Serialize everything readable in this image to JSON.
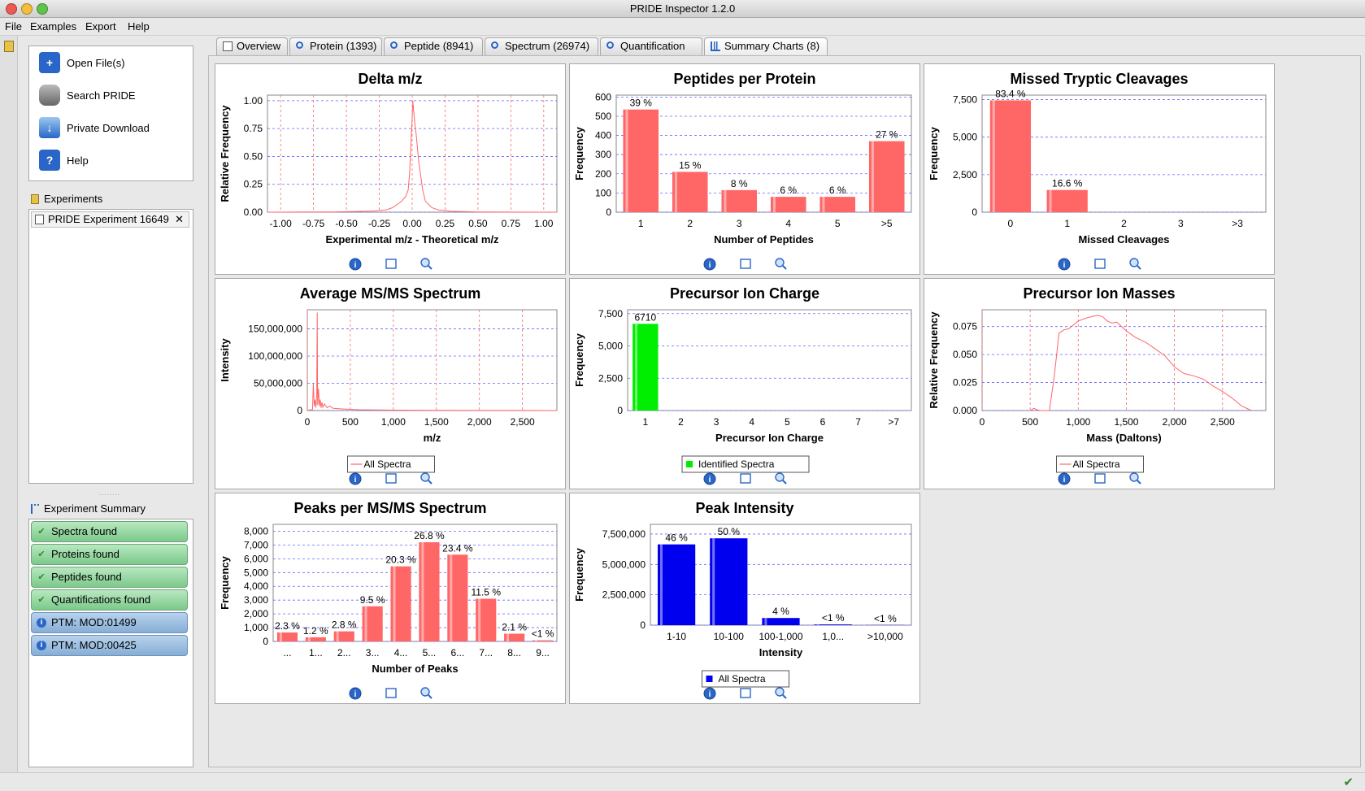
{
  "window": {
    "title": "PRIDE Inspector 1.2.0"
  },
  "menu": [
    "File",
    "Examples",
    "Export",
    "Help"
  ],
  "actions": [
    "Open File(s)",
    "Search PRIDE",
    "Private Download",
    "Help"
  ],
  "experiments": {
    "title": "Experiments",
    "items": [
      "PRIDE Experiment 16649"
    ]
  },
  "summary": {
    "title": "Experiment Summary",
    "items": [
      {
        "label": "Spectra found",
        "status": "check"
      },
      {
        "label": "Proteins found",
        "status": "check"
      },
      {
        "label": "Peptides found",
        "status": "check"
      },
      {
        "label": "Quantifications found",
        "status": "check"
      },
      {
        "label": "PTM: MOD:01499",
        "status": "info"
      },
      {
        "label": "PTM: MOD:00425",
        "status": "info"
      }
    ]
  },
  "tabs": [
    {
      "label": "Overview",
      "icon": "document-icon"
    },
    {
      "label": "Protein (1393)",
      "icon": "search-icon"
    },
    {
      "label": "Peptide (8941)",
      "icon": "search-icon"
    },
    {
      "label": "Spectrum (26974)",
      "icon": "search-icon"
    },
    {
      "label": "Quantification",
      "icon": "search-icon"
    },
    {
      "label": "Summary Charts (8)",
      "icon": "chart-icon",
      "active": true
    }
  ],
  "colors": {
    "red_series": "#ff6666",
    "green_series": "#00ee00",
    "blue_series": "#0000ee"
  },
  "chart_data": [
    {
      "id": "delta",
      "type": "line",
      "title": "Delta m/z",
      "xlabel": "Experimental m/z - Theoretical m/z",
      "ylabel": "Relative Frequency",
      "xlim": [
        -1.1,
        1.1
      ],
      "ylim": [
        0,
        1.05
      ],
      "xticks": [
        "-1.00",
        "-0.75",
        "-0.50",
        "-0.25",
        "0.00",
        "0.25",
        "0.50",
        "0.75",
        "1.00"
      ],
      "xtick_values": [
        -1,
        -0.75,
        -0.5,
        -0.25,
        0,
        0.25,
        0.5,
        0.75,
        1
      ],
      "yticks": [
        "0.00",
        "0.25",
        "0.50",
        "0.75",
        "1.00"
      ],
      "ytick_values": [
        0,
        0.25,
        0.5,
        0.75,
        1
      ],
      "legend": null,
      "series": [
        {
          "x": [
            -1.1,
            -0.6,
            -0.3,
            -0.2,
            -0.15,
            -0.1,
            -0.08,
            -0.05,
            -0.03,
            -0.02,
            -0.01,
            0,
            0.005,
            0.01,
            0.02,
            0.03,
            0.05,
            0.08,
            0.1,
            0.15,
            0.2,
            0.3,
            0.5,
            1.1
          ],
          "y": [
            0,
            0.002,
            0.01,
            0.02,
            0.04,
            0.08,
            0.1,
            0.14,
            0.2,
            0.35,
            0.6,
            0.85,
            1.0,
            0.92,
            0.8,
            0.7,
            0.45,
            0.2,
            0.1,
            0.04,
            0.02,
            0.008,
            0.002,
            0
          ]
        }
      ]
    },
    {
      "id": "ppp",
      "type": "bar",
      "title": "Peptides per Protein",
      "xlabel": "Number of Peptides",
      "ylabel": "Frequency",
      "categories": [
        "1",
        "2",
        "3",
        "4",
        "5",
        ">5"
      ],
      "values": [
        535,
        210,
        115,
        80,
        80,
        370
      ],
      "labels": [
        "39 %",
        "15 %",
        "8 %",
        "6 %",
        "6 %",
        "27 %"
      ],
      "ylim": [
        0,
        610
      ],
      "yticks": [
        "0",
        "100",
        "200",
        "300",
        "400",
        "500",
        "600"
      ],
      "ytick_values": [
        0,
        100,
        200,
        300,
        400,
        500,
        600
      ],
      "legend": null
    },
    {
      "id": "missed",
      "type": "bar",
      "title": "Missed Tryptic Cleavages",
      "xlabel": "Missed Cleavages",
      "ylabel": "Frequency",
      "categories": [
        "0",
        "1",
        "2",
        "3",
        ">3"
      ],
      "values": [
        7450,
        1480,
        0,
        0,
        0
      ],
      "labels": [
        "83.4 %",
        "16.6 %",
        "",
        "",
        ""
      ],
      "ylim": [
        0,
        7800
      ],
      "yticks": [
        "0",
        "2,500",
        "5,000",
        "7,500"
      ],
      "ytick_values": [
        0,
        2500,
        5000,
        7500
      ],
      "legend": null
    },
    {
      "id": "avgms",
      "type": "line",
      "title": "Average MS/MS Spectrum",
      "xlabel": "m/z",
      "ylabel": "Intensity",
      "xlim": [
        0,
        2900
      ],
      "ylim": [
        0,
        185000000
      ],
      "xticks": [
        "0",
        "500",
        "1,000",
        "1,500",
        "2,000",
        "2,500"
      ],
      "xtick_values": [
        0,
        500,
        1000,
        1500,
        2000,
        2500
      ],
      "yticks": [
        "0",
        "50,000,000",
        "100,000,000",
        "150,000,000"
      ],
      "ytick_values": [
        0,
        50000000,
        100000000,
        150000000
      ],
      "legend": "All Spectra",
      "series": [
        {
          "x": [
            0,
            60,
            70,
            80,
            90,
            100,
            110,
            115,
            120,
            130,
            140,
            150,
            160,
            170,
            180,
            200,
            230,
            260,
            300,
            400,
            600,
            1000,
            1500,
            2500,
            2900
          ],
          "y": [
            0,
            2000000,
            50000000,
            8000000,
            20000000,
            5000000,
            30000000,
            180000000,
            10000000,
            40000000,
            8000000,
            20000000,
            5000000,
            15000000,
            6000000,
            12000000,
            5000000,
            8000000,
            4000000,
            3000000,
            1500000,
            800000,
            400000,
            100000,
            0
          ]
        }
      ]
    },
    {
      "id": "charge",
      "type": "bar",
      "title": "Precursor Ion Charge",
      "xlabel": "Precursor Ion Charge",
      "ylabel": "Frequency",
      "categories": [
        "1",
        "2",
        "3",
        "4",
        "5",
        "6",
        "7",
        ">7"
      ],
      "values": [
        6710,
        0,
        0,
        0,
        0,
        0,
        0,
        0
      ],
      "labels": [
        "6710",
        "",
        "",
        "",
        "",
        "",
        "",
        ""
      ],
      "ylim": [
        0,
        7800
      ],
      "yticks": [
        "0",
        "2,500",
        "5,000",
        "7,500"
      ],
      "ytick_values": [
        0,
        2500,
        5000,
        7500
      ],
      "legend": "Identified Spectra",
      "color": "green"
    },
    {
      "id": "masses",
      "type": "line",
      "title": "Precursor Ion Masses",
      "xlabel": "Mass (Daltons)",
      "ylabel": "Relative Frequency",
      "xlim": [
        0,
        2950
      ],
      "ylim": [
        0,
        0.09
      ],
      "xticks": [
        "0",
        "500",
        "1,000",
        "1,500",
        "2,000",
        "2,500"
      ],
      "xtick_values": [
        0,
        500,
        1000,
        1500,
        2000,
        2500
      ],
      "yticks": [
        "0.000",
        "0.025",
        "0.050",
        "0.075"
      ],
      "ytick_values": [
        0,
        0.025,
        0.05,
        0.075
      ],
      "legend": "All Spectra",
      "series": [
        {
          "x": [
            500,
            540,
            560,
            600,
            700,
            750,
            800,
            850,
            900,
            1000,
            1100,
            1200,
            1250,
            1300,
            1350,
            1400,
            1500,
            1600,
            1700,
            1800,
            1900,
            2000,
            2100,
            2200,
            2300,
            2400,
            2500,
            2600,
            2700,
            2800
          ],
          "y": [
            0,
            0.002,
            0.001,
            0,
            0,
            0.03,
            0.069,
            0.072,
            0.073,
            0.08,
            0.083,
            0.085,
            0.084,
            0.08,
            0.078,
            0.079,
            0.071,
            0.065,
            0.061,
            0.055,
            0.049,
            0.039,
            0.033,
            0.031,
            0.028,
            0.022,
            0.017,
            0.011,
            0.004,
            0
          ]
        }
      ]
    },
    {
      "id": "peaks",
      "type": "bar",
      "title": "Peaks per MS/MS Spectrum",
      "xlabel": "Number of Peaks",
      "ylabel": "Frequency",
      "categories": [
        "...",
        "1...",
        "2...",
        "3...",
        "4...",
        "5...",
        "6...",
        "7...",
        "8...",
        "9..."
      ],
      "values": [
        650,
        300,
        730,
        2550,
        5450,
        7200,
        6300,
        3100,
        560,
        80
      ],
      "labels": [
        "2.3 %",
        "1.2 %",
        "2.8 %",
        "9.5 %",
        "20.3 %",
        "26.8 %",
        "23.4 %",
        "11.5 %",
        "2.1 %",
        "<1 %"
      ],
      "ylim": [
        0,
        8500
      ],
      "yticks": [
        "0",
        "1,000",
        "2,000",
        "3,000",
        "4,000",
        "5,000",
        "6,000",
        "7,000",
        "8,000"
      ],
      "ytick_values": [
        0,
        1000,
        2000,
        3000,
        4000,
        5000,
        6000,
        7000,
        8000
      ],
      "legend": null
    },
    {
      "id": "intensity",
      "type": "bar",
      "title": "Peak Intensity",
      "xlabel": "Intensity",
      "ylabel": "Frequency",
      "categories": [
        "1-10",
        "10-100",
        "100-1,000",
        "1,0...",
        ">10,000"
      ],
      "values": [
        6650000,
        7150000,
        590000,
        60000,
        15000
      ],
      "labels": [
        "46 %",
        "50 %",
        "4 %",
        "<1 %",
        "<1 %"
      ],
      "ylim": [
        0,
        8300000
      ],
      "yticks": [
        "0",
        "2,500,000",
        "5,000,000",
        "7,500,000"
      ],
      "ytick_values": [
        0,
        2500000,
        5000000,
        7500000
      ],
      "legend": "All Spectra",
      "color": "blue"
    }
  ]
}
